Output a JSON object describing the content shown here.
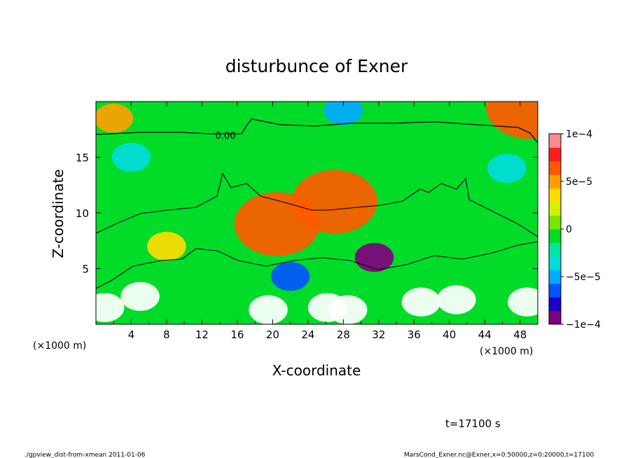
{
  "chart_data": {
    "type": "heatmap",
    "title": "disturbunce of Exner",
    "xlabel": "X-coordinate",
    "ylabel": "Z-coordinate",
    "x_unit_left": "(×1000 m)",
    "x_unit_right": "(×1000 m)",
    "xlim": [
      0,
      50
    ],
    "ylim": [
      0,
      20
    ],
    "x_ticks": [
      4,
      8,
      12,
      16,
      20,
      24,
      28,
      32,
      36,
      40,
      44,
      48
    ],
    "y_ticks": [
      5,
      10,
      15
    ],
    "colorbar": {
      "range": [
        -0.0001,
        0.0001
      ],
      "tick_values": [
        0.0001,
        5e-05,
        0,
        -5e-05,
        -0.0001
      ],
      "tick_labels": [
        "1e−4",
        "5e−5",
        "0",
        "−5e−5",
        "−1e−4"
      ],
      "colors": [
        "#7f007f",
        "#1e00c8",
        "#0055ff",
        "#00aaff",
        "#00dcdc",
        "#00e6a0",
        "#00dc28",
        "#78e600",
        "#d2f000",
        "#ffdc00",
        "#ffa000",
        "#ff5a00",
        "#ff1e1e",
        "#ff8c8c"
      ]
    },
    "contour_label": "0.00",
    "features": [
      {
        "x": 27,
        "z": 11,
        "value": 7e-05
      },
      {
        "x": 20.5,
        "z": 9,
        "value": 6e-05
      },
      {
        "x": 8,
        "z": 7,
        "value": 4e-05
      },
      {
        "x": 31.5,
        "z": 6,
        "value": -9e-05
      },
      {
        "x": 22,
        "z": 4.3,
        "value": -7e-05
      },
      {
        "x": 2,
        "z": 18.5,
        "value": 5e-05
      },
      {
        "x": 49,
        "z": 19.5,
        "value": 6e-05
      },
      {
        "x": 28,
        "z": 19.2,
        "value": -5e-05
      },
      {
        "x": 4,
        "z": 15,
        "value": -4e-05
      },
      {
        "x": 46.5,
        "z": 14,
        "value": -4e-05
      },
      {
        "x": 1,
        "z": 1.5,
        "value": 0.00012
      },
      {
        "x": 5,
        "z": 2.5,
        "value": 0.00012
      },
      {
        "x": 19.5,
        "z": 1.3,
        "value": 0.00012
      },
      {
        "x": 26.2,
        "z": 1.5,
        "value": 0.00012
      },
      {
        "x": 28.5,
        "z": 1.3,
        "value": 0.00012
      },
      {
        "x": 36.8,
        "z": 2,
        "value": 0.00012
      },
      {
        "x": 40.8,
        "z": 2.2,
        "value": 0.00012
      },
      {
        "x": 48.8,
        "z": 2,
        "value": 0.00012
      }
    ]
  },
  "time_label": "t=17100 s",
  "footer_left": "./gpview_dist-from-xmean  2011-01-06",
  "footer_right": "MarsCond_Exner.nc@Exner,x=0:50000,z=0:20000,t=17100"
}
